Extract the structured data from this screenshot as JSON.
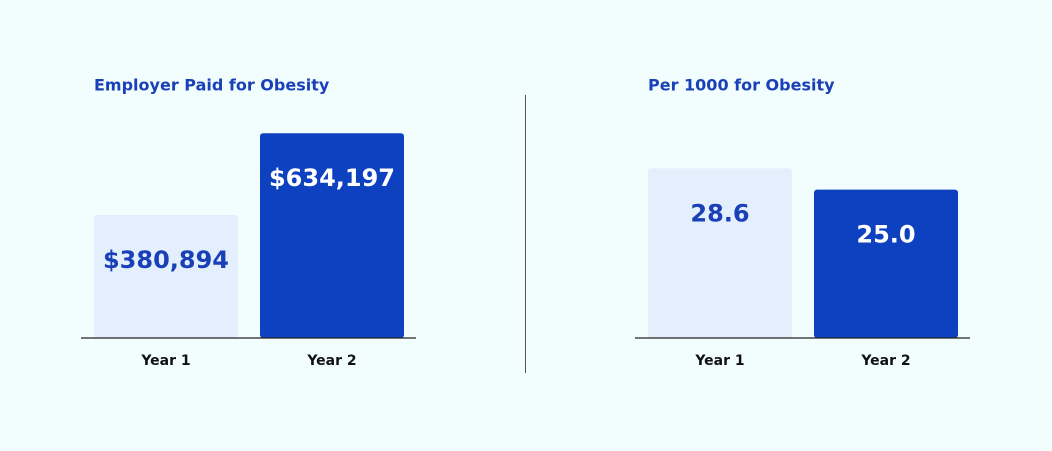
{
  "chart_data": [
    {
      "type": "bar",
      "title": "Employer Paid for Obesity",
      "categories": [
        "Year 1",
        "Year 2"
      ],
      "values": [
        380894,
        634197
      ],
      "value_labels": [
        "$380,894",
        "$634,197"
      ],
      "colors": [
        "#e3effd",
        "#0d41c0"
      ],
      "ylim": [
        0,
        700000
      ]
    },
    {
      "type": "bar",
      "title": "Per 1000 for Obesity",
      "categories": [
        "Year 1",
        "Year 2"
      ],
      "values": [
        28.6,
        25.0
      ],
      "value_labels": [
        "28.6",
        "25.0"
      ],
      "colors": [
        "#e3effd",
        "#0d41c0"
      ],
      "ylim": [
        0,
        30
      ]
    }
  ]
}
